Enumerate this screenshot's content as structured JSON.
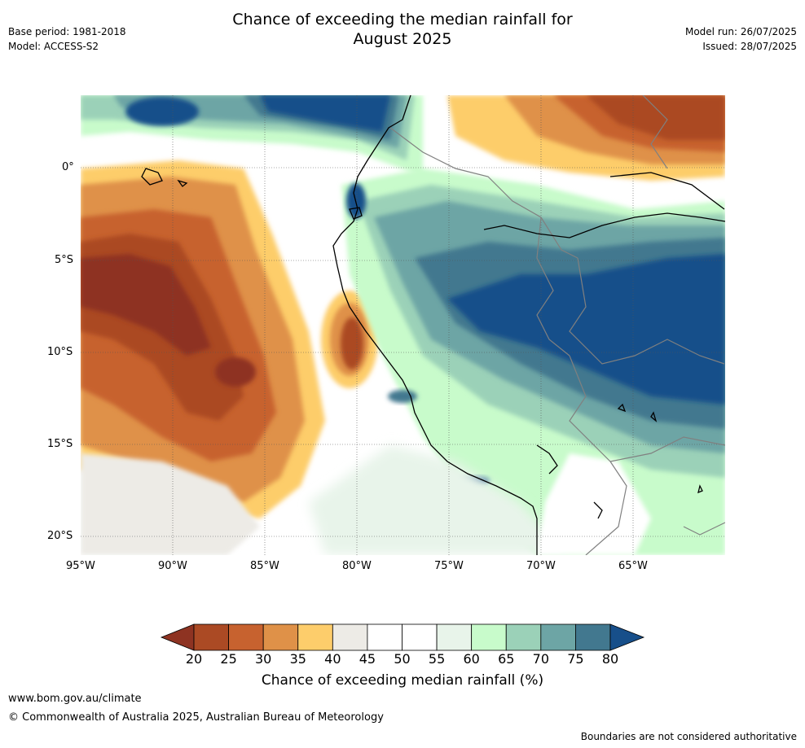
{
  "title_line1": "Chance of exceeding the median rainfall for",
  "title_line2": "August 2025",
  "base_period": "Base period: 1981-2018",
  "model": "Model: ACCESS-S2",
  "model_run": "Model run: 26/07/2025",
  "issued": "Issued: 28/07/2025",
  "lat_labels": [
    "0°",
    "5°S",
    "10°S",
    "15°S",
    "20°S"
  ],
  "lon_labels": [
    "95°W",
    "90°W",
    "85°W",
    "80°W",
    "75°W",
    "70°W",
    "65°W"
  ],
  "colorbar": {
    "title": "Chance of exceeding median rainfall (%)",
    "ticks": [
      "20",
      "25",
      "30",
      "35",
      "40",
      "45",
      "50",
      "55",
      "60",
      "65",
      "70",
      "75",
      "80"
    ],
    "colors": [
      "#ab4a24",
      "#c7622f",
      "#df9148",
      "#fdcd6b",
      "#edebe6",
      "#ffffff",
      "#ffffff",
      "#e8f4ea",
      "#c8fbcb",
      "#9bd1b8",
      "#6da5a5",
      "#42788f"
    ],
    "under_color": "#8e3322",
    "over_color": "#174f8a"
  },
  "footer_url": "www.bom.gov.au/climate",
  "footer_copyright": "© Commonwealth of Australia 2025, Australian Bureau of Meteorology",
  "footer_note": "Boundaries are not considered authoritative"
}
